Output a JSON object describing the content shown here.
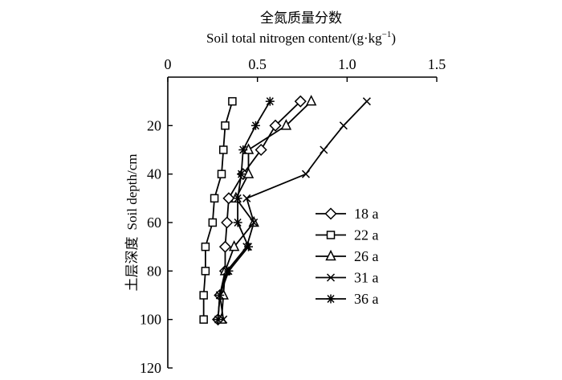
{
  "chart_data": {
    "type": "line",
    "title_cn": "全氮质量分数",
    "title_en": "Soil total nitrogen content/(g·kg",
    "title_en_sup": "−1",
    "title_en_tail": ")",
    "ylabel_cn": "土层深度",
    "ylabel_en": "Soil depth/cm",
    "x_axis_position": "top",
    "y_axis_inverted": true,
    "xlim": [
      0,
      1.5
    ],
    "ylim": [
      0,
      120
    ],
    "xticks": [
      "0",
      "0.5",
      "1.0",
      "1.5"
    ],
    "xtick_values": [
      0,
      0.5,
      1.0,
      1.5
    ],
    "yticks": [
      "20",
      "40",
      "60",
      "80",
      "100",
      "120"
    ],
    "ytick_values": [
      20,
      40,
      60,
      80,
      100,
      120
    ],
    "legend_position": "right",
    "depths": [
      10,
      20,
      30,
      40,
      50,
      60,
      70,
      80,
      90,
      100
    ],
    "series": [
      {
        "name": "18 a",
        "marker": "diamond",
        "values": [
          0.74,
          0.6,
          0.52,
          0.42,
          0.34,
          0.33,
          0.32,
          0.32,
          0.29,
          0.28
        ]
      },
      {
        "name": "22 a",
        "marker": "square",
        "values": [
          0.36,
          0.32,
          0.31,
          0.3,
          0.26,
          0.25,
          0.21,
          0.21,
          0.2,
          0.2
        ]
      },
      {
        "name": "26 a",
        "marker": "triangle",
        "values": [
          0.8,
          0.66,
          0.45,
          0.45,
          0.38,
          0.48,
          0.37,
          0.32,
          0.31,
          0.3
        ]
      },
      {
        "name": "31 a",
        "marker": "x",
        "values": [
          1.11,
          0.98,
          0.87,
          0.77,
          0.44,
          0.48,
          0.44,
          0.33,
          0.29,
          0.31
        ]
      },
      {
        "name": "36 a",
        "marker": "asterisk",
        "values": [
          0.57,
          0.49,
          0.42,
          0.41,
          0.39,
          0.39,
          0.45,
          0.34,
          0.29,
          0.28
        ]
      }
    ]
  }
}
